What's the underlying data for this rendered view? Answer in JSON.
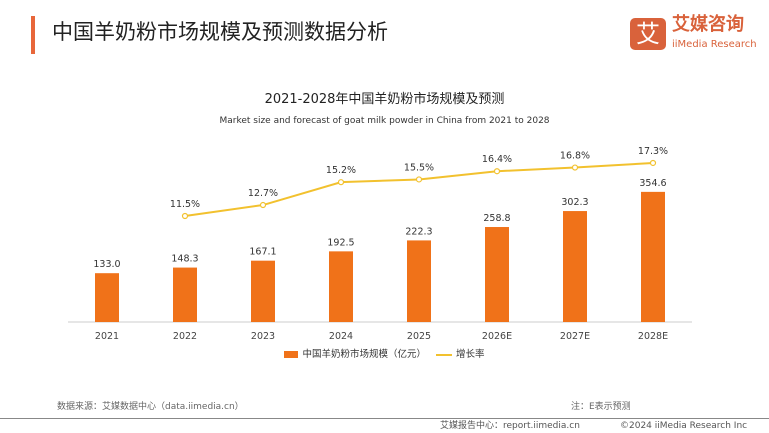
{
  "header": {
    "title": "中国羊奶粉市场规模及预测数据分析",
    "logo_mark": "艾",
    "logo_cn": "艾媒咨询",
    "logo_en": "iiMedia Research"
  },
  "chart_data": {
    "type": "bar+line",
    "title": "2021-2028年中国羊奶粉市场规模及预测",
    "subtitle": "Market size and forecast of goat milk powder in China from 2021 to 2028",
    "categories": [
      "2021",
      "2022",
      "2023",
      "2024",
      "2025",
      "2026E",
      "2027E",
      "2028E"
    ],
    "series": [
      {
        "name": "中国羊奶粉市场规模（亿元）",
        "type": "bar",
        "color": "#f07219",
        "values": [
          133.0,
          148.3,
          167.1,
          192.5,
          222.3,
          258.8,
          302.3,
          354.6
        ],
        "labels": [
          "133.0",
          "148.3",
          "167.1",
          "192.5",
          "222.3",
          "258.8",
          "302.3",
          "354.6"
        ]
      },
      {
        "name": "增长率",
        "type": "line",
        "color": "#f2c12e",
        "values": [
          null,
          11.5,
          12.7,
          15.2,
          15.5,
          16.4,
          16.8,
          17.3
        ],
        "labels": [
          "",
          "11.5%",
          "12.7%",
          "15.2%",
          "15.5%",
          "16.4%",
          "16.8%",
          "17.3%"
        ]
      }
    ],
    "legend": "bottom",
    "grid": false
  },
  "footer": {
    "source": "数据来源：艾媒数据中心（data.iimedia.cn）",
    "note": "注：E表示预测",
    "report": "艾媒报告中心：report.iimedia.cn",
    "copyright": "©2024  iiMedia Research  Inc"
  }
}
